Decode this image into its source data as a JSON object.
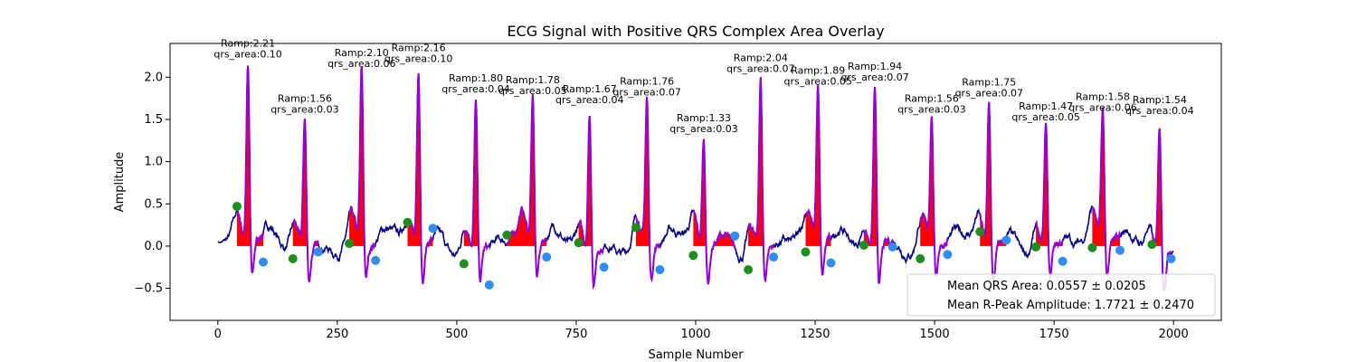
{
  "chart_data": {
    "type": "line",
    "title": "ECG Signal with Positive QRS Complex Area Overlay",
    "xlabel": "Sample Number",
    "ylabel": "Amplitude",
    "xlim": [
      -100,
      2100
    ],
    "ylim": [
      -0.88,
      2.4
    ],
    "x_ticks": [
      0,
      250,
      500,
      750,
      1000,
      1250,
      1500,
      1750,
      2000
    ],
    "y_ticks": [
      -0.5,
      0.0,
      0.5,
      1.0,
      1.5,
      2.0
    ],
    "grid": false,
    "colors": {
      "signal": "#00008b",
      "qrs_segment": "#9400d3",
      "area_fill": "#ff0000",
      "q_point": "#1e8f1e",
      "s_point": "#2f8ef0"
    },
    "beats": [
      {
        "r_x": 63,
        "r_amp": 2.21,
        "r_label": "Ramp:2.21",
        "area_label": "qrs_area:0.10",
        "q_x": 40,
        "q_y": 0.47,
        "s_x": 95,
        "s_y": -0.19
      },
      {
        "r_x": 182,
        "r_amp": 1.56,
        "r_label": "Ramp:1.56",
        "area_label": "qrs_area:0.03",
        "q_x": 157,
        "q_y": -0.15,
        "s_x": 210,
        "s_y": -0.07
      },
      {
        "r_x": 301,
        "r_amp": 2.1,
        "r_label": "Ramp:2.10",
        "area_label": "qrs_area:0.06",
        "q_x": 275,
        "q_y": 0.03,
        "s_x": 330,
        "s_y": -0.17
      },
      {
        "r_x": 420,
        "r_amp": 2.16,
        "r_label": "Ramp:2.16",
        "area_label": "qrs_area:0.10",
        "q_x": 397,
        "q_y": 0.28,
        "s_x": 450,
        "s_y": 0.21
      },
      {
        "r_x": 540,
        "r_amp": 1.8,
        "r_label": "Ramp:1.80",
        "area_label": "qrs_area:0.04",
        "q_x": 515,
        "q_y": -0.21,
        "s_x": 568,
        "s_y": -0.46
      },
      {
        "r_x": 659,
        "r_amp": 1.78,
        "r_label": "Ramp:1.78",
        "area_label": "qrs_area:0.05",
        "q_x": 605,
        "q_y": 0.13,
        "s_x": 688,
        "s_y": -0.13
      },
      {
        "r_x": 778,
        "r_amp": 1.67,
        "r_label": "Ramp:1.67",
        "area_label": "qrs_area:0.04",
        "q_x": 755,
        "q_y": 0.04,
        "s_x": 808,
        "s_y": -0.25
      },
      {
        "r_x": 898,
        "r_amp": 1.76,
        "r_label": "Ramp:1.76",
        "area_label": "qrs_area:0.07",
        "q_x": 875,
        "q_y": 0.22,
        "s_x": 925,
        "s_y": -0.28
      },
      {
        "r_x": 1017,
        "r_amp": 1.33,
        "r_label": "Ramp:1.33",
        "area_label": "qrs_area:0.03",
        "q_x": 995,
        "q_y": -0.11,
        "s_x": 1082,
        "s_y": 0.12
      },
      {
        "r_x": 1136,
        "r_amp": 2.04,
        "r_label": "Ramp:2.04",
        "area_label": "qrs_area:0.07",
        "q_x": 1110,
        "q_y": -0.28,
        "s_x": 1163,
        "s_y": -0.13
      },
      {
        "r_x": 1256,
        "r_amp": 1.89,
        "r_label": "Ramp:1.89",
        "area_label": "qrs_area:0.05",
        "q_x": 1230,
        "q_y": -0.07,
        "s_x": 1283,
        "s_y": -0.2
      },
      {
        "r_x": 1375,
        "r_amp": 1.94,
        "r_label": "Ramp:1.94",
        "area_label": "qrs_area:0.07",
        "q_x": 1352,
        "q_y": 0.01,
        "s_x": 1412,
        "s_y": -0.01
      },
      {
        "r_x": 1494,
        "r_amp": 1.56,
        "r_label": "Ramp:1.56",
        "area_label": "qrs_area:0.03",
        "q_x": 1470,
        "q_y": -0.15,
        "s_x": 1527,
        "s_y": -0.1
      },
      {
        "r_x": 1614,
        "r_amp": 1.75,
        "r_label": "Ramp:1.75",
        "area_label": "qrs_area:0.07",
        "q_x": 1595,
        "q_y": 0.17,
        "s_x": 1650,
        "s_y": 0.07
      },
      {
        "r_x": 1733,
        "r_amp": 1.47,
        "r_label": "Ramp:1.47",
        "area_label": "qrs_area:0.05",
        "q_x": 1712,
        "q_y": -0.01,
        "s_x": 1768,
        "s_y": -0.18
      },
      {
        "r_x": 1852,
        "r_amp": 1.58,
        "r_label": "Ramp:1.58",
        "area_label": "qrs_area:0.06",
        "q_x": 1830,
        "q_y": -0.02,
        "s_x": 1888,
        "s_y": -0.05
      },
      {
        "r_x": 1971,
        "r_amp": 1.54,
        "r_label": "Ramp:1.54",
        "area_label": "qrs_area:0.04",
        "q_x": 1955,
        "q_y": 0.02,
        "s_x": 1995,
        "s_y": -0.15
      }
    ],
    "legend": {
      "placement": "lower-right",
      "entries": [
        "Mean QRS Area: 0.0557 ± 0.0205",
        "Mean R-Peak Amplitude: 1.7721 ± 0.2470"
      ]
    }
  }
}
